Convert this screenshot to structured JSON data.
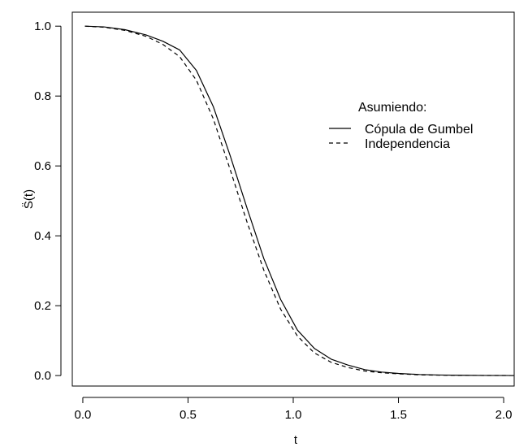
{
  "chart_data": {
    "type": "line",
    "xlabel": "t",
    "ylabel": "S̈(t)",
    "xlim": [
      -0.05,
      2.05
    ],
    "ylim": [
      -0.03,
      1.04
    ],
    "x_ticks": [
      0.0,
      0.5,
      1.0,
      1.5,
      2.0
    ],
    "x_tick_labels": [
      "0.0",
      "0.5",
      "1.0",
      "1.5",
      "2.0"
    ],
    "y_ticks": [
      0.0,
      0.2,
      0.4,
      0.6,
      0.8,
      1.0
    ],
    "y_tick_labels": [
      "0.0",
      "0.2",
      "0.4",
      "0.6",
      "0.8",
      "1.0"
    ],
    "grid": false,
    "legend": {
      "title": "Asumiendo:",
      "position": "upper-right"
    },
    "series": [
      {
        "name": "Cópula de Gumbel",
        "style": "solid",
        "color": "#000000",
        "x": [
          0.01,
          0.1,
          0.2,
          0.3,
          0.38,
          0.46,
          0.54,
          0.62,
          0.7,
          0.78,
          0.86,
          0.94,
          1.02,
          1.1,
          1.18,
          1.26,
          1.34,
          1.42,
          1.5,
          1.6,
          1.7,
          1.8,
          1.9,
          2.05
        ],
        "y": [
          1.0,
          0.998,
          0.99,
          0.975,
          0.957,
          0.932,
          0.873,
          0.77,
          0.63,
          0.48,
          0.335,
          0.218,
          0.13,
          0.078,
          0.047,
          0.03,
          0.017,
          0.01,
          0.006,
          0.003,
          0.0015,
          0.0008,
          0.0004,
          0.0001
        ]
      },
      {
        "name": "Independencia",
        "style": "dashed",
        "color": "#000000",
        "x": [
          0.01,
          0.1,
          0.2,
          0.3,
          0.38,
          0.46,
          0.54,
          0.62,
          0.7,
          0.78,
          0.86,
          0.94,
          1.02,
          1.1,
          1.18,
          1.26,
          1.34,
          1.42,
          1.5,
          1.6,
          1.7,
          1.8,
          1.9,
          2.05
        ],
        "y": [
          1.0,
          0.997,
          0.988,
          0.971,
          0.948,
          0.913,
          0.845,
          0.735,
          0.59,
          0.44,
          0.302,
          0.19,
          0.113,
          0.065,
          0.038,
          0.023,
          0.013,
          0.008,
          0.005,
          0.002,
          0.001,
          0.0005,
          0.0003,
          0.0001
        ]
      }
    ]
  }
}
